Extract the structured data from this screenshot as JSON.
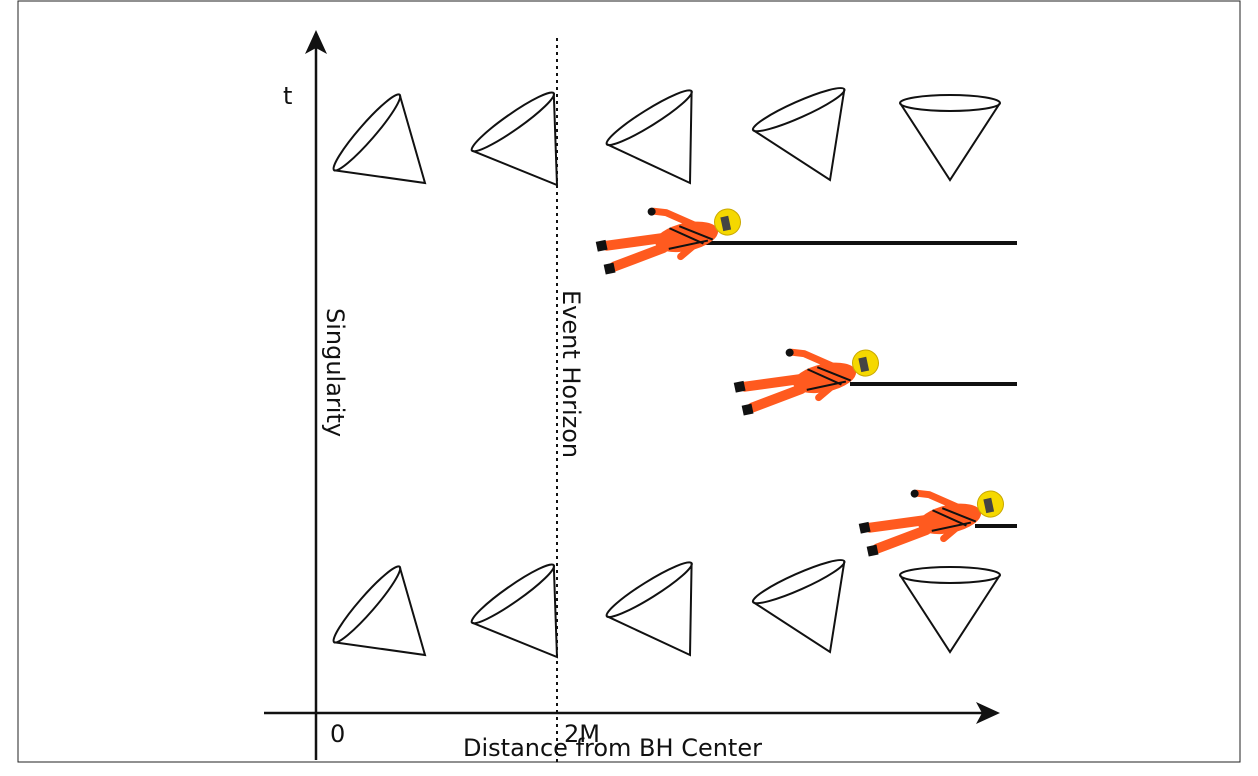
{
  "axes": {
    "time_label": "t",
    "distance_label": "Distance from BH Center",
    "origin_label": "0",
    "horizon_radius_label": "2M"
  },
  "lines": {
    "singularity_label": "Singularity",
    "event_horizon_label": "Event Horizon"
  }
}
